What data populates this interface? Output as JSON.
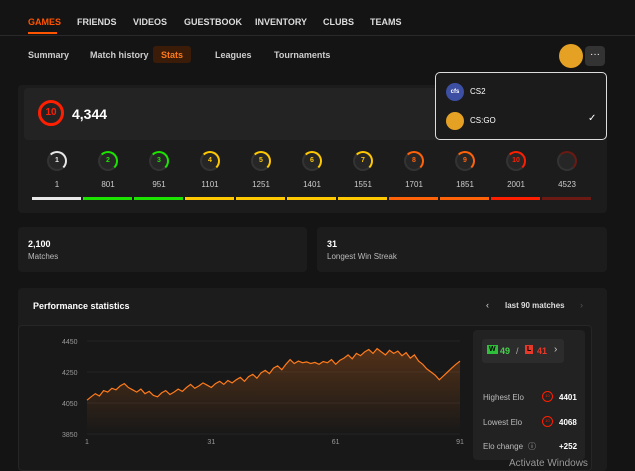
{
  "nav": {
    "tabs": [
      "GAMES",
      "FRIENDS",
      "VIDEOS",
      "GUESTBOOK",
      "INVENTORY",
      "CLUBS",
      "TEAMS"
    ]
  },
  "subnav": {
    "tabs": [
      "Summary",
      "Match history",
      "Stats",
      "Leagues",
      "Tournaments"
    ]
  },
  "dropdown": {
    "items": [
      {
        "label": "CS2",
        "icon": "cfs"
      },
      {
        "label": "CS:GO"
      }
    ]
  },
  "level": {
    "badge": "10",
    "elo": "4,344"
  },
  "levels": [
    {
      "label": "1",
      "threshold": "1",
      "color": "#e8e8e8"
    },
    {
      "label": "2",
      "threshold": "801",
      "color": "#1ce400"
    },
    {
      "label": "3",
      "threshold": "951",
      "color": "#1ce400"
    },
    {
      "label": "4",
      "threshold": "1101",
      "color": "#ffc800"
    },
    {
      "label": "5",
      "threshold": "1251",
      "color": "#ffc800"
    },
    {
      "label": "6",
      "threshold": "1401",
      "color": "#ffc800"
    },
    {
      "label": "7",
      "threshold": "1551",
      "color": "#ffc800"
    },
    {
      "label": "8",
      "threshold": "1701",
      "color": "#ff6309"
    },
    {
      "label": "9",
      "threshold": "1851",
      "color": "#ff6309"
    },
    {
      "label": "10",
      "threshold": "2001",
      "color": "#fe1f00"
    },
    {
      "threshold": "4523",
      "color": "#6a1a12"
    }
  ],
  "stats": [
    {
      "value": "2,100",
      "label": "Matches"
    },
    {
      "value": "31",
      "label": "Longest Win Streak"
    }
  ],
  "performance": {
    "title": "Performance statistics",
    "range": "last 90 matches",
    "wins_badge": "W",
    "wins": "49",
    "separator": "/",
    "losses_badge": "L",
    "losses": "41",
    "rows": [
      {
        "label": "Highest Elo",
        "badge": "10",
        "value": "4401"
      },
      {
        "label": "Lowest Elo",
        "badge": "10",
        "value": "4068"
      },
      {
        "label": "Elo change",
        "icon": "ⓘ",
        "value": "+252"
      }
    ]
  },
  "watermark": "Activate Windows",
  "chart_data": {
    "type": "line",
    "color": "#ff7a1a",
    "x": [
      1,
      2,
      3,
      4,
      5,
      6,
      7,
      8,
      9,
      10,
      11,
      12,
      13,
      14,
      15,
      16,
      17,
      18,
      19,
      20,
      21,
      22,
      23,
      24,
      25,
      26,
      27,
      28,
      29,
      30,
      31,
      32,
      33,
      34,
      35,
      36,
      37,
      38,
      39,
      40,
      41,
      42,
      43,
      44,
      45,
      46,
      47,
      48,
      49,
      50,
      51,
      52,
      53,
      54,
      55,
      56,
      57,
      58,
      59,
      60,
      61,
      62,
      63,
      64,
      65,
      66,
      67,
      68,
      69,
      70,
      71,
      72,
      73,
      74,
      75,
      76,
      77,
      78,
      79,
      80,
      81,
      82,
      83,
      84,
      85,
      86,
      87,
      88,
      89,
      90,
      91
    ],
    "values": [
      4068,
      4090,
      4110,
      4095,
      4130,
      4120,
      4145,
      4135,
      4160,
      4175,
      4150,
      4135,
      4120,
      4140,
      4110,
      4125,
      4100,
      4090,
      4115,
      4130,
      4105,
      4120,
      4140,
      4125,
      4150,
      4170,
      4145,
      4160,
      4180,
      4165,
      4150,
      4175,
      4190,
      4170,
      4195,
      4180,
      4200,
      4215,
      4190,
      4220,
      4235,
      4210,
      4245,
      4260,
      4240,
      4275,
      4290,
      4265,
      4300,
      4330,
      4305,
      4320,
      4310,
      4315,
      4305,
      4312,
      4300,
      4318,
      4310,
      4330,
      4300,
      4325,
      4340,
      4360,
      4335,
      4370,
      4355,
      4380,
      4395,
      4370,
      4401,
      4380,
      4360,
      4390,
      4370,
      4385,
      4355,
      4375,
      4340,
      4360,
      4320,
      4300,
      4270,
      4250,
      4230,
      4200,
      4225,
      4250,
      4275,
      4300,
      4320
    ],
    "xlim": [
      1,
      91
    ],
    "xticks": [
      1,
      31,
      61,
      91
    ],
    "ylim": [
      3850,
      4450
    ],
    "yticks": [
      3850,
      4050,
      4250,
      4450
    ],
    "grid": true
  }
}
